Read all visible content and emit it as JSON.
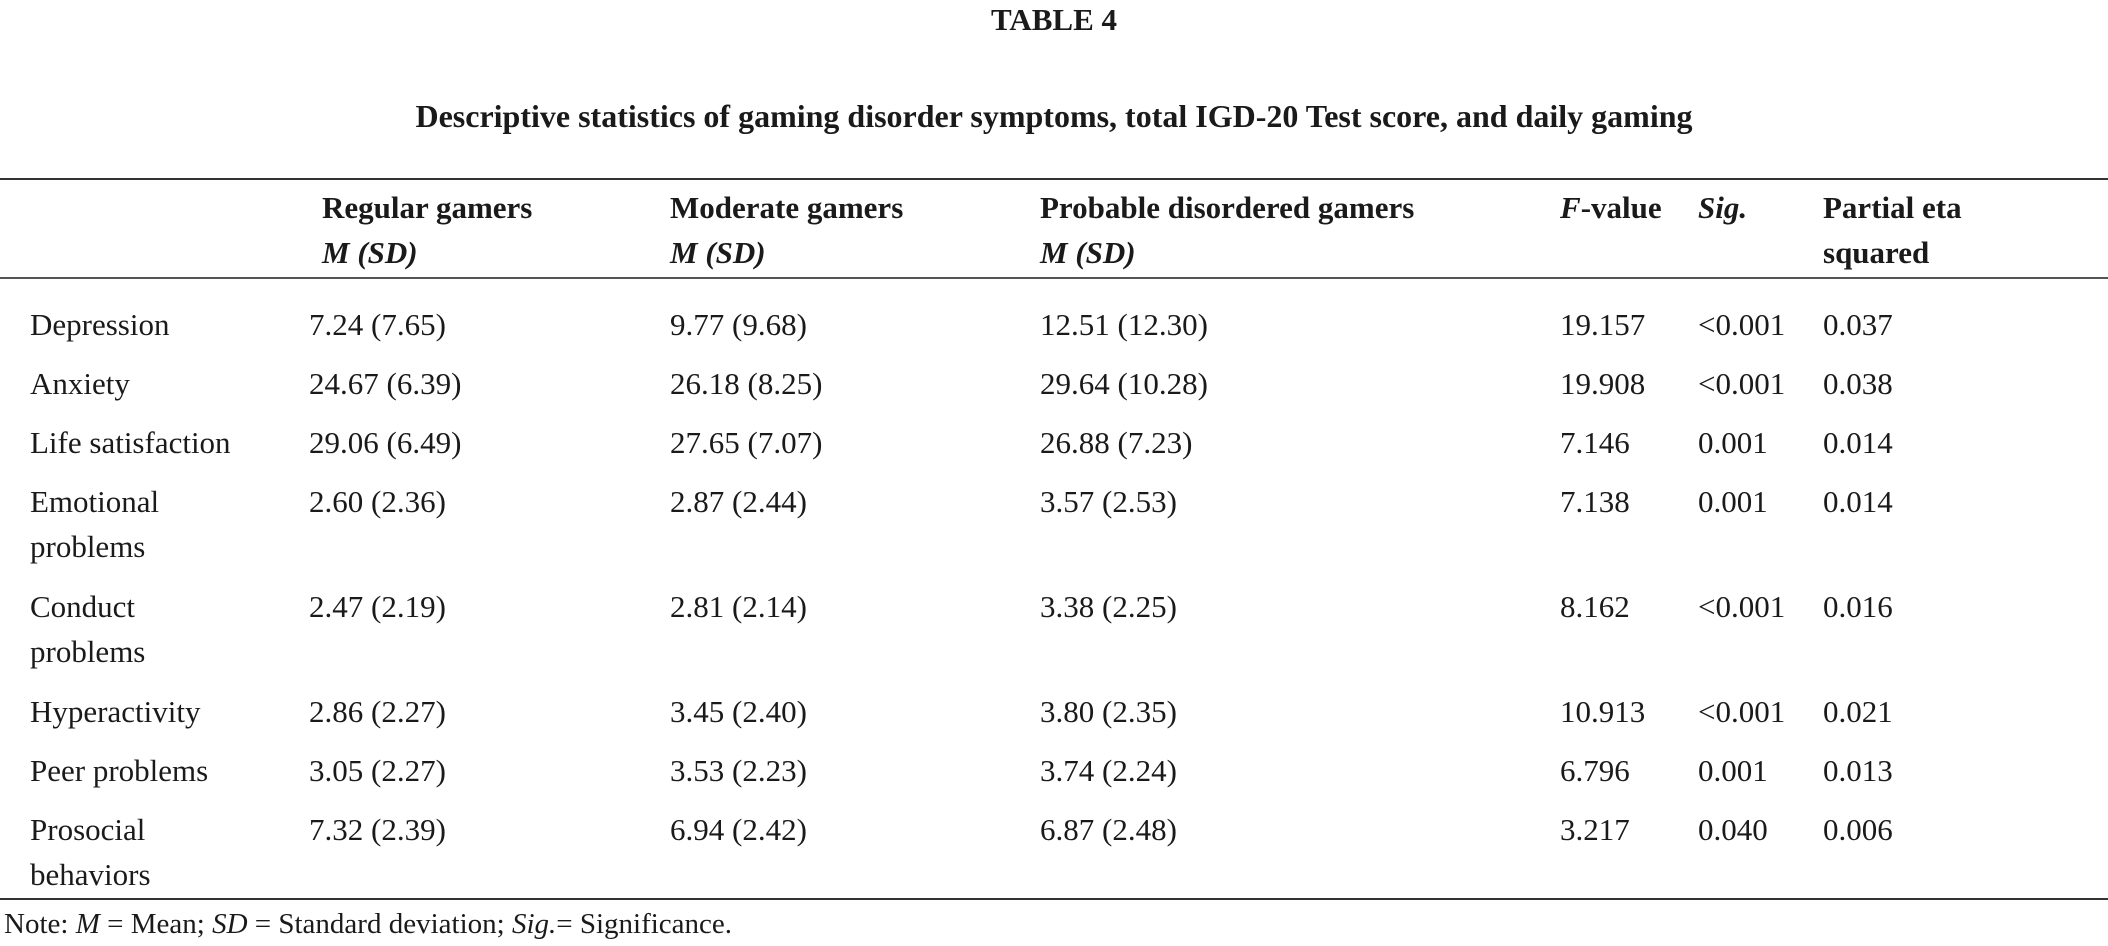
{
  "table_label": "TABLE 4",
  "caption": "Descriptive statistics of gaming disorder symptoms, total IGD-20 Test score, and daily gaming",
  "headers": {
    "regular": {
      "line1": "Regular gamers",
      "line2": "M (SD)"
    },
    "moderate": {
      "line1": "Moderate gamers",
      "line2": "M (SD)"
    },
    "probable": {
      "line1": "Probable disordered gamers",
      "line2": "M (SD)"
    },
    "f_value": {
      "italic": "F",
      "rest": "-value"
    },
    "sig": "Sig.",
    "eta": {
      "line1": "Partial eta",
      "line2": "squared"
    }
  },
  "rows": [
    {
      "label1": "Depression",
      "label2": "",
      "regular": "7.24 (7.65)",
      "moderate": "9.77 (9.68)",
      "probable": "12.51 (12.30)",
      "f": "19.157",
      "sig": "<0.001",
      "eta": "0.037"
    },
    {
      "label1": "Anxiety",
      "label2": "",
      "regular": "24.67 (6.39)",
      "moderate": "26.18 (8.25)",
      "probable": "29.64 (10.28)",
      "f": "19.908",
      "sig": "<0.001",
      "eta": "0.038"
    },
    {
      "label1": "Life satisfaction",
      "label2": "",
      "regular": "29.06 (6.49)",
      "moderate": "27.65 (7.07)",
      "probable": "26.88 (7.23)",
      "f": "7.146",
      "sig": "0.001",
      "eta": "0.014"
    },
    {
      "label1": "Emotional",
      "label2": "problems",
      "regular": "2.60 (2.36)",
      "moderate": "2.87 (2.44)",
      "probable": "3.57 (2.53)",
      "f": "7.138",
      "sig": "0.001",
      "eta": "0.014"
    },
    {
      "label1": "Conduct",
      "label2": "problems",
      "regular": "2.47 (2.19)",
      "moderate": "2.81 (2.14)",
      "probable": "3.38 (2.25)",
      "f": "8.162",
      "sig": "<0.001",
      "eta": "0.016"
    },
    {
      "label1": "Hyperactivity",
      "label2": "",
      "regular": "2.86 (2.27)",
      "moderate": "3.45 (2.40)",
      "probable": "3.80 (2.35)",
      "f": "10.913",
      "sig": "<0.001",
      "eta": "0.021"
    },
    {
      "label1": "Peer problems",
      "label2": "",
      "regular": "3.05 (2.27)",
      "moderate": "3.53 (2.23)",
      "probable": "3.74 (2.24)",
      "f": "6.796",
      "sig": "0.001",
      "eta": "0.013"
    },
    {
      "label1": "Prosocial",
      "label2": "behaviors",
      "regular": "7.32 (2.39)",
      "moderate": "6.94 (2.42)",
      "probable": "6.87 (2.48)",
      "f": "3.217",
      "sig": "0.040",
      "eta": "0.006"
    }
  ],
  "note": {
    "prefix": "Note: ",
    "m_abbr": "M",
    "m_def": " = Mean; ",
    "sd_abbr": "SD",
    "sd_def": " = Standard deviation; ",
    "sig_abbr": "Sig.",
    "sig_def": "= Significance."
  }
}
